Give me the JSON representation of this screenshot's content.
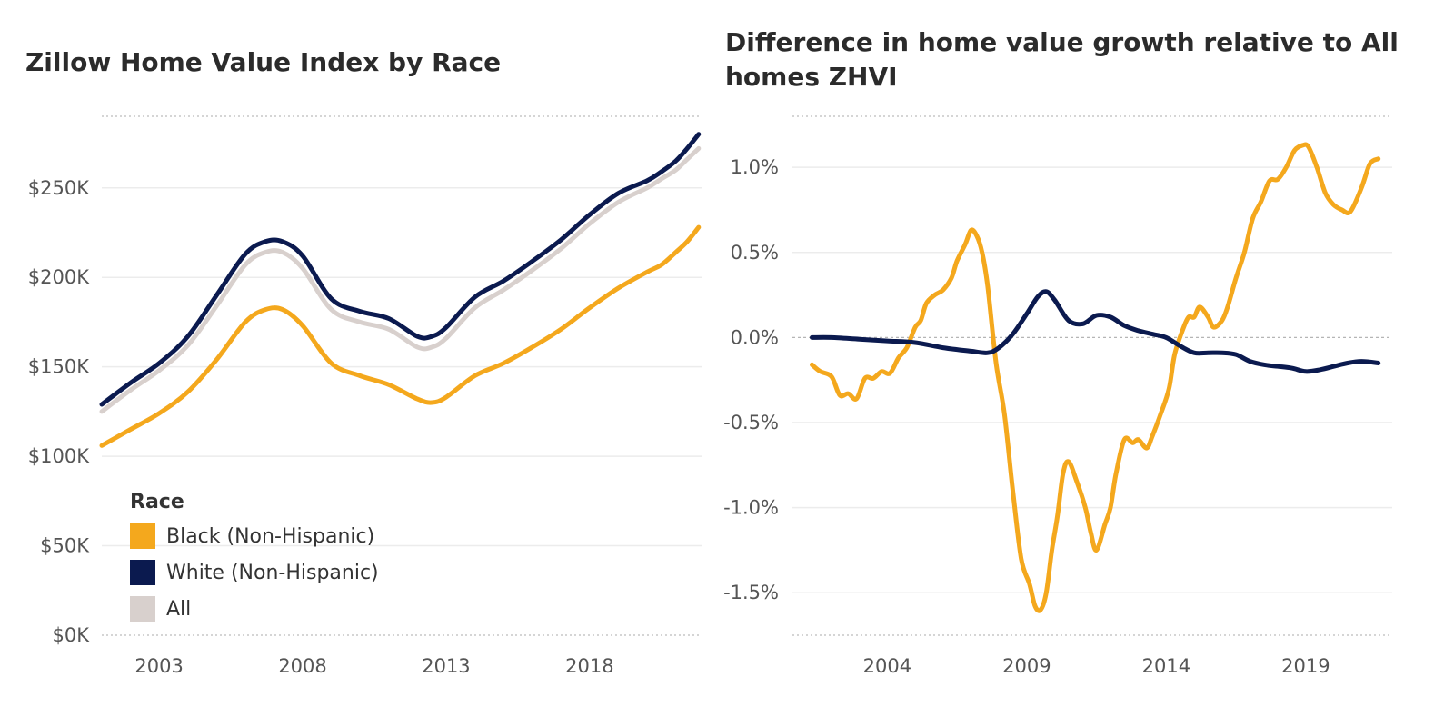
{
  "colors": {
    "black_series": "#f4a81d",
    "white_series": "#0b1a4f",
    "all_series": "#d8d0cd",
    "grid": "#ececec",
    "zero_line": "#b5b5b5",
    "tick_text": "#555555"
  },
  "chart_data": [
    {
      "type": "line",
      "title": "Zillow Home Value Index by Race",
      "xlabel": "",
      "ylabel": "",
      "x_ticks": [
        2003,
        2008,
        2013,
        2018
      ],
      "y_ticks": [
        "$0K",
        "$50K",
        "$100K",
        "$150K",
        "$200K",
        "$250K"
      ],
      "xlim": [
        2001.0,
        2021.9
      ],
      "ylim": [
        0,
        290000
      ],
      "grid": true,
      "legend_title": "Race",
      "legend_placement": "bottom-left",
      "series": [
        {
          "name": "Black (Non-Hispanic)",
          "color_key": "black_series",
          "x": [
            2001.0,
            2002.0,
            2003.0,
            2004.0,
            2005.0,
            2006.0,
            2006.7,
            2007.3,
            2008.0,
            2009.0,
            2010.0,
            2011.0,
            2012.0,
            2012.5,
            2013.0,
            2014.0,
            2015.0,
            2016.0,
            2017.0,
            2018.0,
            2019.0,
            2020.0,
            2020.5,
            2021.0,
            2021.4,
            2021.8
          ],
          "y": [
            106000,
            115000,
            124000,
            136000,
            154000,
            175000,
            182000,
            182000,
            173000,
            152000,
            145000,
            140000,
            132000,
            130000,
            133000,
            145000,
            152000,
            161000,
            171000,
            183000,
            194000,
            203000,
            207000,
            214000,
            220000,
            228000
          ]
        },
        {
          "name": "White (Non-Hispanic)",
          "color_key": "white_series",
          "x": [
            2001.0,
            2002.0,
            2003.0,
            2004.0,
            2005.0,
            2006.0,
            2006.7,
            2007.3,
            2008.0,
            2009.0,
            2010.0,
            2011.0,
            2012.0,
            2012.5,
            2013.0,
            2014.0,
            2015.0,
            2016.0,
            2017.0,
            2018.0,
            2019.0,
            2020.0,
            2020.5,
            2021.0,
            2021.4,
            2021.8
          ],
          "y": [
            129000,
            141000,
            152000,
            167000,
            190000,
            213000,
            220000,
            220000,
            212000,
            188000,
            181000,
            177000,
            167000,
            167000,
            172000,
            189000,
            198000,
            209000,
            221000,
            235000,
            247000,
            254000,
            259000,
            265000,
            272000,
            280000
          ]
        },
        {
          "name": "All",
          "color_key": "all_series",
          "x": [
            2001.0,
            2002.0,
            2003.0,
            2004.0,
            2005.0,
            2006.0,
            2006.7,
            2007.3,
            2008.0,
            2009.0,
            2010.0,
            2011.0,
            2012.0,
            2012.5,
            2013.0,
            2014.0,
            2015.0,
            2016.0,
            2017.0,
            2018.0,
            2019.0,
            2020.0,
            2020.5,
            2021.0,
            2021.4,
            2021.8
          ],
          "y": [
            125000,
            137000,
            148000,
            162000,
            184000,
            207000,
            214000,
            214000,
            205000,
            182000,
            175000,
            171000,
            161000,
            161000,
            166000,
            183000,
            193000,
            204000,
            216000,
            230000,
            242000,
            250000,
            255000,
            260000,
            266000,
            272000
          ]
        }
      ]
    },
    {
      "type": "line",
      "title": "Difference in home value growth relative to All homes ZHVI",
      "xlabel": "",
      "ylabel": "",
      "x_ticks": [
        2004,
        2009,
        2014,
        2019
      ],
      "y_ticks": [
        "-1.5%",
        "-1.0%",
        "-0.5%",
        "0.0%",
        "0.5%",
        "1.0%"
      ],
      "xlim": [
        2000.6,
        2022.1
      ],
      "ylim": [
        -1.75,
        1.3
      ],
      "grid": true,
      "zero_line": "dashed",
      "series": [
        {
          "name": "Black (Non-Hispanic)",
          "color_key": "black_series",
          "x": [
            2001.3,
            2001.6,
            2002.0,
            2002.3,
            2002.6,
            2002.9,
            2003.2,
            2003.5,
            2003.8,
            2004.1,
            2004.4,
            2004.7,
            2005.0,
            2005.2,
            2005.4,
            2005.7,
            2006.0,
            2006.3,
            2006.5,
            2006.8,
            2007.0,
            2007.2,
            2007.4,
            2007.6,
            2007.9,
            2008.2,
            2008.5,
            2008.8,
            2009.1,
            2009.3,
            2009.5,
            2009.7,
            2009.9,
            2010.1,
            2010.3,
            2010.5,
            2010.8,
            2011.1,
            2011.3,
            2011.5,
            2011.8,
            2012.0,
            2012.2,
            2012.5,
            2012.8,
            2013.0,
            2013.3,
            2013.5,
            2013.8,
            2014.1,
            2014.3,
            2014.6,
            2014.8,
            2015.0,
            2015.2,
            2015.5,
            2015.7,
            2016.0,
            2016.2,
            2016.5,
            2016.8,
            2017.1,
            2017.4,
            2017.7,
            2018.0,
            2018.3,
            2018.6,
            2018.9,
            2019.1,
            2019.4,
            2019.7,
            2020.0,
            2020.3,
            2020.6,
            2021.0,
            2021.3,
            2021.6
          ],
          "y": [
            -0.16,
            -0.2,
            -0.23,
            -0.34,
            -0.33,
            -0.36,
            -0.24,
            -0.24,
            -0.2,
            -0.21,
            -0.12,
            -0.06,
            0.06,
            0.1,
            0.2,
            0.25,
            0.28,
            0.35,
            0.45,
            0.55,
            0.63,
            0.6,
            0.5,
            0.3,
            -0.15,
            -0.45,
            -0.9,
            -1.3,
            -1.45,
            -1.58,
            -1.6,
            -1.5,
            -1.25,
            -1.05,
            -0.8,
            -0.73,
            -0.85,
            -1.0,
            -1.15,
            -1.25,
            -1.1,
            -1.0,
            -0.8,
            -0.6,
            -0.62,
            -0.6,
            -0.65,
            -0.58,
            -0.45,
            -0.3,
            -0.1,
            0.05,
            0.12,
            0.12,
            0.18,
            0.12,
            0.06,
            0.1,
            0.18,
            0.35,
            0.5,
            0.7,
            0.8,
            0.92,
            0.93,
            1.0,
            1.1,
            1.13,
            1.12,
            1.0,
            0.85,
            0.78,
            0.75,
            0.74,
            0.88,
            1.02,
            1.05
          ]
        },
        {
          "name": "White (Non-Hispanic)",
          "color_key": "white_series",
          "x": [
            2001.3,
            2002.0,
            2003.0,
            2004.0,
            2005.0,
            2006.0,
            2007.0,
            2007.6,
            2008.0,
            2008.5,
            2009.0,
            2009.4,
            2009.7,
            2010.0,
            2010.5,
            2011.0,
            2011.5,
            2012.0,
            2012.5,
            2013.0,
            2013.5,
            2014.0,
            2014.5,
            2015.0,
            2015.5,
            2016.0,
            2016.5,
            2017.0,
            2017.5,
            2018.0,
            2018.5,
            2019.0,
            2019.5,
            2020.0,
            2020.5,
            2021.0,
            2021.6
          ],
          "y": [
            0.0,
            0.0,
            -0.01,
            -0.02,
            -0.03,
            -0.06,
            -0.08,
            -0.09,
            -0.06,
            0.02,
            0.14,
            0.24,
            0.27,
            0.22,
            0.1,
            0.08,
            0.13,
            0.12,
            0.07,
            0.04,
            0.02,
            0.0,
            -0.05,
            -0.09,
            -0.09,
            -0.09,
            -0.1,
            -0.14,
            -0.16,
            -0.17,
            -0.18,
            -0.2,
            -0.19,
            -0.17,
            -0.15,
            -0.14,
            -0.15
          ]
        }
      ]
    }
  ]
}
